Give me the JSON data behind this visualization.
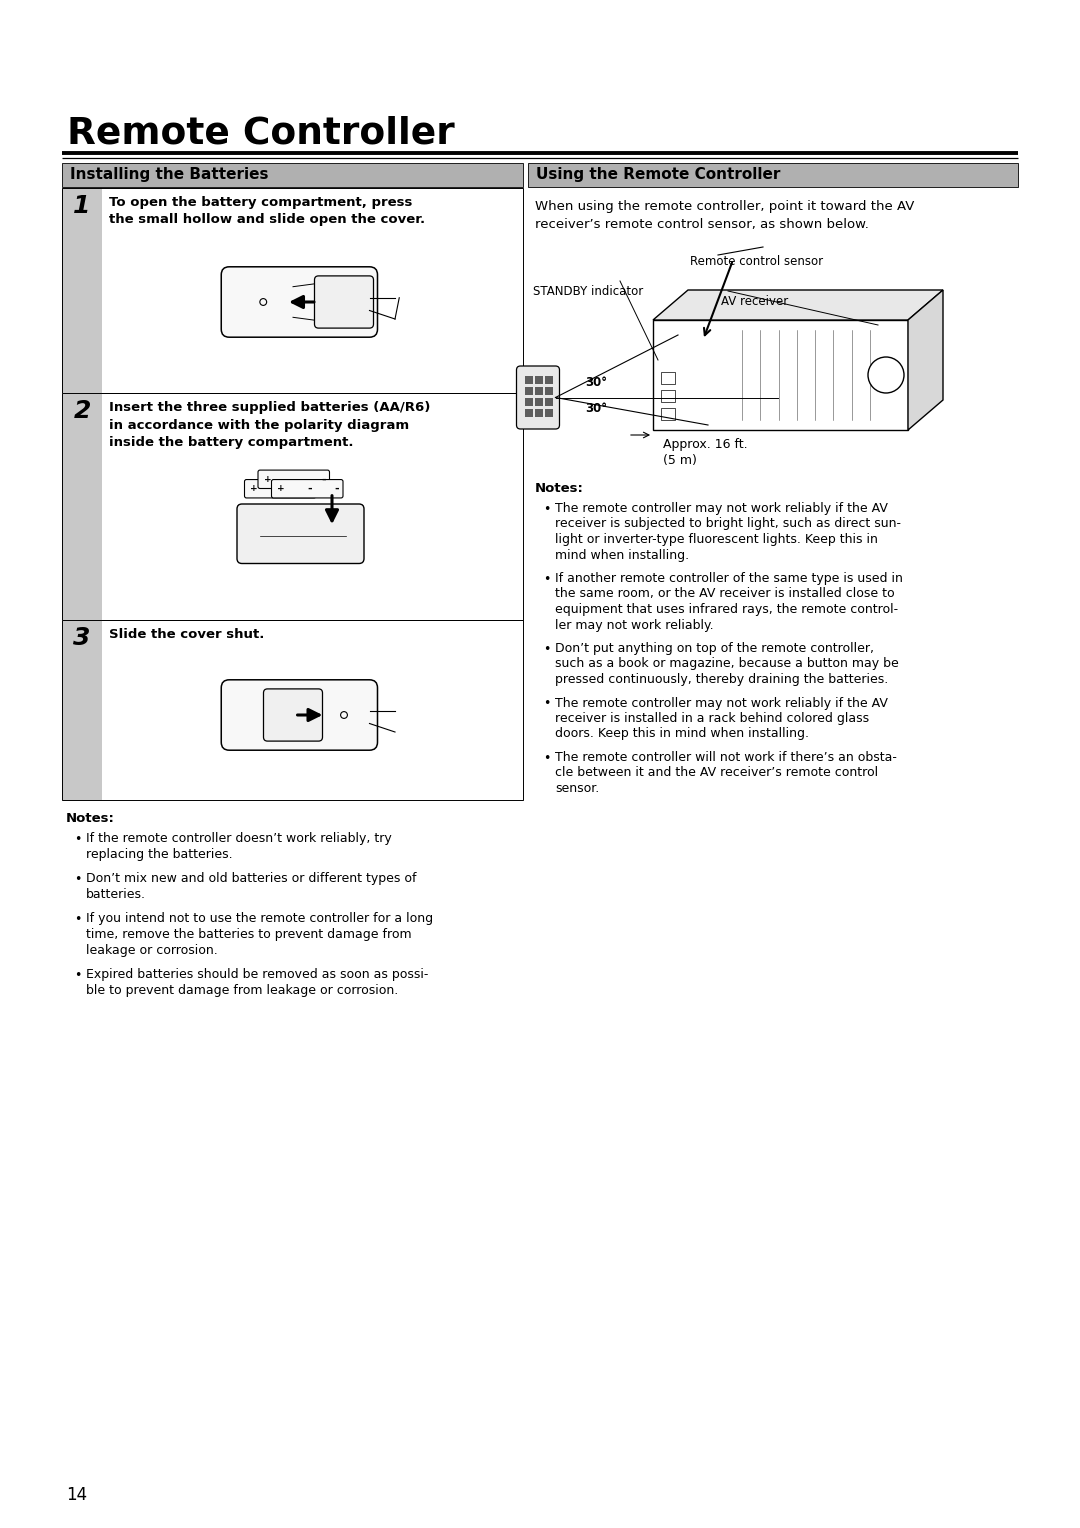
{
  "title": "Remote Controller",
  "section_left": "Installing the Batteries",
  "section_right": "Using the Remote Controller",
  "page_number": "14",
  "bg_color": "#ffffff",
  "section_header_bg": "#b0b0b0",
  "step_col_bg": "#c8c8c8",
  "step1_text": "To open the battery compartment, press\nthe small hollow and slide open the cover.",
  "step2_text": "Insert the three supplied batteries (AA/R6)\nin accordance with the polarity diagram\ninside the battery compartment.",
  "step3_text": "Slide the cover shut.",
  "notes_left_title": "Notes:",
  "notes_left": [
    "If the remote controller doesn’t work reliably, try\nreplacing the batteries.",
    "Don’t mix new and old batteries or different types of\nbatteries.",
    "If you intend not to use the remote controller for a long\ntime, remove the batteries to prevent damage from\nleakage or corrosion.",
    "Expired batteries should be removed as soon as possi-\nble to prevent damage from leakage or corrosion."
  ],
  "right_intro": "When using the remote controller, point it toward the AV\nreceiver’s remote control sensor, as shown below.",
  "label_remote_sensor": "Remote control sensor",
  "label_standby": "STANDBY indicator",
  "label_av_receiver": "AV receiver",
  "label_approx": "Approx. 16 ft.\n(5 m)",
  "angle_30_1": "30",
  "angle_30_2": "30",
  "notes_right_title": "Notes:",
  "notes_right": [
    "The remote controller may not work reliably if the AV\nreceiver is subjected to bright light, such as direct sun-\nlight or inverter-type fluorescent lights. Keep this in\nmind when installing.",
    "If another remote controller of the same type is used in\nthe same room, or the AV receiver is installed close to\nequipment that uses infrared rays, the remote control-\nler may not work reliably.",
    "Don’t put anything on top of the remote controller,\nsuch as a book or magazine, because a button may be\npressed continuously, thereby draining the batteries.",
    "The remote controller may not work reliably if the AV\nreceiver is installed in a rack behind colored glass\ndoors. Keep this in mind when installing.",
    "The remote controller will not work if there’s an obsta-\ncle between it and the AV receiver’s remote control\nsensor."
  ]
}
